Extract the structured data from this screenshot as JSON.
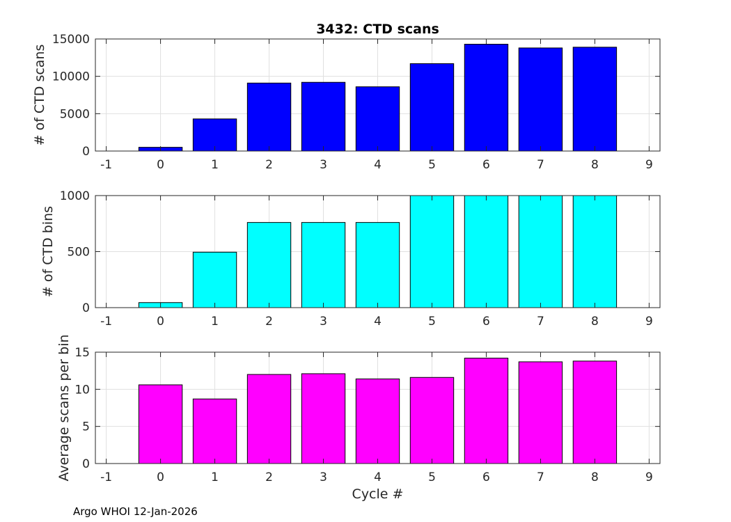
{
  "footer_text": "Argo WHOI 12-Jan-2026",
  "colors": {
    "panel1_bar": "#0000ff",
    "panel2_bar": "#00ffff",
    "panel3_bar": "#ff00ff",
    "grid": "#e0e0e0",
    "axis": "#262626"
  },
  "chart_data": [
    {
      "type": "bar",
      "title": "3432: CTD scans",
      "xlabel": "",
      "ylabel": "# of CTD scans",
      "xlim": [
        -1.2,
        9.2
      ],
      "ylim": [
        0,
        15000
      ],
      "xticks": [
        -1,
        0,
        1,
        2,
        3,
        4,
        5,
        6,
        7,
        8,
        9
      ],
      "yticks": [
        0,
        5000,
        10000,
        15000
      ],
      "grid": true,
      "x": [
        0,
        1,
        2,
        3,
        4,
        5,
        6,
        7,
        8
      ],
      "values": [
        500,
        4300,
        9100,
        9200,
        8600,
        11700,
        14300,
        13800,
        13900
      ]
    },
    {
      "type": "bar",
      "title": "",
      "xlabel": "",
      "ylabel": "# of CTD bins",
      "xlim": [
        -1.2,
        9.2
      ],
      "ylim": [
        0,
        1000
      ],
      "xticks": [
        -1,
        0,
        1,
        2,
        3,
        4,
        5,
        6,
        7,
        8,
        9
      ],
      "yticks": [
        0,
        500,
        1000
      ],
      "grid": true,
      "x": [
        0,
        1,
        2,
        3,
        4,
        5,
        6,
        7,
        8
      ],
      "values": [
        45,
        495,
        760,
        760,
        760,
        1000,
        1000,
        1000,
        1000
      ]
    },
    {
      "type": "bar",
      "title": "",
      "xlabel": "Cycle #",
      "ylabel": "Average scans per bin",
      "xlim": [
        -1.2,
        9.2
      ],
      "ylim": [
        0,
        15
      ],
      "xticks": [
        -1,
        0,
        1,
        2,
        3,
        4,
        5,
        6,
        7,
        8,
        9
      ],
      "yticks": [
        0,
        5,
        10,
        15
      ],
      "grid": true,
      "x": [
        0,
        1,
        2,
        3,
        4,
        5,
        6,
        7,
        8
      ],
      "values": [
        10.6,
        8.7,
        12.0,
        12.1,
        11.4,
        11.6,
        14.2,
        13.7,
        13.8
      ]
    }
  ]
}
